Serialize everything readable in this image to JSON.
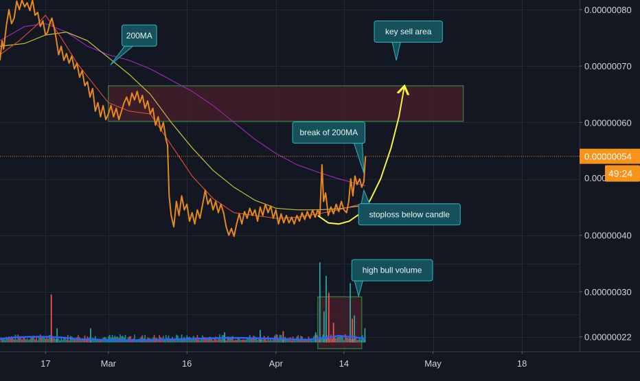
{
  "chart_data": {
    "type": "line",
    "price_axis": {
      "ticks": [
        {
          "label": "0.00000080",
          "value": 8e-07
        },
        {
          "label": "0.00000070",
          "value": 7e-07
        },
        {
          "label": "0.00000060",
          "value": 6e-07
        },
        {
          "label": "0.00000040",
          "value": 4e-07
        },
        {
          "label": "0.00000030",
          "value": 3e-07
        },
        {
          "label": "0.00000022",
          "value": 2.2e-07
        }
      ],
      "partial_tick_label": "0.000",
      "range": [
        1.94e-07,
        8.17e-07
      ]
    },
    "time_axis": {
      "ticks": [
        {
          "label": "17",
          "day": 0
        },
        {
          "label": "Mar",
          "day": 12
        },
        {
          "label": "16",
          "day": 27
        },
        {
          "label": "Apr",
          "day": 44
        },
        {
          "label": "14",
          "day": 57
        },
        {
          "label": "May",
          "day": 74
        },
        {
          "label": "18",
          "day": 91
        }
      ],
      "range_days": [
        -8.7,
        102
      ]
    },
    "current_price": {
      "value": 5.4e-07,
      "label": "0.00000054",
      "countdown": "49:24",
      "color": "#f7931a"
    },
    "price_series": {
      "color": "#e8891c",
      "points": [
        [
          -8.7,
          7.1e-07
        ],
        [
          -8.3,
          7.45e-07
        ],
        [
          -8.0,
          7.3e-07
        ],
        [
          -7.5,
          7.7e-07
        ],
        [
          -7.0,
          8e-07
        ],
        [
          -6.5,
          7.75e-07
        ],
        [
          -6.0,
          7.85e-07
        ],
        [
          -5.5,
          8.15e-07
        ],
        [
          -5.0,
          8e-07
        ],
        [
          -4.5,
          8.17e-07
        ],
        [
          -4.0,
          8.05e-07
        ],
        [
          -3.5,
          8.12e-07
        ],
        [
          -3.0,
          7.98e-07
        ],
        [
          -2.5,
          8.17e-07
        ],
        [
          -2.0,
          7.9e-07
        ],
        [
          -1.5,
          7.95e-07
        ],
        [
          -1.0,
          7.7e-07
        ],
        [
          -0.5,
          7.8e-07
        ],
        [
          0.0,
          7.55e-07
        ],
        [
          0.4,
          7.6e-07
        ],
        [
          0.8,
          7.75e-07
        ],
        [
          1.2,
          7.85e-07
        ],
        [
          1.6,
          7.7e-07
        ],
        [
          2.0,
          7.5e-07
        ],
        [
          2.5,
          7.2e-07
        ],
        [
          3.0,
          7.35e-07
        ],
        [
          3.5,
          7.1e-07
        ],
        [
          4.0,
          7.22e-07
        ],
        [
          4.5,
          7.05e-07
        ],
        [
          5.0,
          7.18e-07
        ],
        [
          5.5,
          6.95e-07
        ],
        [
          6.0,
          7.05e-07
        ],
        [
          6.5,
          6.8e-07
        ],
        [
          7.0,
          6.92e-07
        ],
        [
          7.5,
          6.65e-07
        ],
        [
          8.0,
          6.72e-07
        ],
        [
          8.5,
          6.45e-07
        ],
        [
          9.0,
          6.6e-07
        ],
        [
          9.5,
          6.2e-07
        ],
        [
          10.0,
          6.35e-07
        ],
        [
          10.5,
          6.1e-07
        ],
        [
          11.0,
          6.3e-07
        ],
        [
          11.5,
          6.05e-07
        ],
        [
          12.0,
          6.15e-07
        ],
        [
          12.5,
          6.3e-07
        ],
        [
          13.0,
          6.1e-07
        ],
        [
          13.5,
          6.25e-07
        ],
        [
          14.0,
          6.05e-07
        ],
        [
          14.5,
          6.2e-07
        ],
        [
          15.0,
          6.35e-07
        ],
        [
          15.5,
          6.45e-07
        ],
        [
          16.0,
          6.3e-07
        ],
        [
          16.5,
          6.52e-07
        ],
        [
          17.0,
          6.4e-07
        ],
        [
          17.5,
          6.55e-07
        ],
        [
          18.0,
          6.35e-07
        ],
        [
          18.5,
          6.48e-07
        ],
        [
          19.0,
          6.25e-07
        ],
        [
          19.5,
          6.38e-07
        ],
        [
          20.0,
          6.15e-07
        ],
        [
          20.5,
          6.25e-07
        ],
        [
          21.0,
          5.95e-07
        ],
        [
          21.5,
          6.1e-07
        ],
        [
          22.0,
          5.85e-07
        ],
        [
          22.5,
          6e-07
        ],
        [
          23.0,
          5.7e-07
        ],
        [
          23.3,
          5.6e-07
        ],
        [
          23.6,
          4.7e-07
        ],
        [
          24.0,
          4.35e-07
        ],
        [
          24.5,
          4.15e-07
        ],
        [
          25.0,
          4.6e-07
        ],
        [
          25.5,
          4.35e-07
        ],
        [
          26.0,
          4.7e-07
        ],
        [
          26.5,
          4.45e-07
        ],
        [
          27.0,
          4.55e-07
        ],
        [
          27.5,
          4.25e-07
        ],
        [
          28.0,
          4.4e-07
        ],
        [
          28.5,
          4.2e-07
        ],
        [
          29.0,
          4.45e-07
        ],
        [
          29.5,
          4.3e-07
        ],
        [
          30.0,
          4.55e-07
        ],
        [
          30.5,
          4.8e-07
        ],
        [
          31.0,
          4.55e-07
        ],
        [
          31.5,
          4.65e-07
        ],
        [
          32.0,
          4.45e-07
        ],
        [
          32.5,
          4.6e-07
        ],
        [
          33.0,
          4.4e-07
        ],
        [
          33.5,
          4.55e-07
        ],
        [
          34.0,
          4.4e-07
        ],
        [
          34.5,
          4.15e-07
        ],
        [
          35.0,
          4e-07
        ],
        [
          35.5,
          4.12e-07
        ],
        [
          36.0,
          3.98e-07
        ],
        [
          36.5,
          4.2e-07
        ],
        [
          37.0,
          4.38e-07
        ],
        [
          37.5,
          4.2e-07
        ],
        [
          38.0,
          4.42e-07
        ],
        [
          38.5,
          4.3e-07
        ],
        [
          39.0,
          4.48e-07
        ],
        [
          39.5,
          4.35e-07
        ],
        [
          40.0,
          4.45e-07
        ],
        [
          40.5,
          4.25e-07
        ],
        [
          41.0,
          4.5e-07
        ],
        [
          41.5,
          4.35e-07
        ],
        [
          42.0,
          4.55e-07
        ],
        [
          42.5,
          4.4e-07
        ],
        [
          43.0,
          4.52e-07
        ],
        [
          43.5,
          4.3e-07
        ],
        [
          44.0,
          4.45e-07
        ],
        [
          44.5,
          4.2e-07
        ],
        [
          45.0,
          4.38e-07
        ],
        [
          45.5,
          4.22e-07
        ],
        [
          46.0,
          4.35e-07
        ],
        [
          46.5,
          4.22e-07
        ],
        [
          47.0,
          4.32e-07
        ],
        [
          47.5,
          4.2e-07
        ],
        [
          48.0,
          4.35e-07
        ],
        [
          48.5,
          4.25e-07
        ],
        [
          49.0,
          4.4e-07
        ],
        [
          49.5,
          4.28e-07
        ],
        [
          50.0,
          4.42e-07
        ],
        [
          50.5,
          4.3e-07
        ],
        [
          51.0,
          4.45e-07
        ],
        [
          51.5,
          4.32e-07
        ],
        [
          52.0,
          4.45e-07
        ],
        [
          52.4,
          4.35e-07
        ],
        [
          52.8,
          5.25e-07
        ],
        [
          53.1,
          4.6e-07
        ],
        [
          53.5,
          4.75e-07
        ],
        [
          54.0,
          4.35e-07
        ],
        [
          54.5,
          4.5e-07
        ],
        [
          55.0,
          4.38e-07
        ],
        [
          55.5,
          4.55e-07
        ],
        [
          56.0,
          4.42e-07
        ],
        [
          56.5,
          4.6e-07
        ],
        [
          57.0,
          4.45e-07
        ],
        [
          57.5,
          4.4e-07
        ],
        [
          57.9,
          4.6e-07
        ],
        [
          58.3,
          5e-07
        ],
        [
          58.7,
          4.7e-07
        ],
        [
          59.1,
          5.05e-07
        ],
        [
          59.5,
          4.9e-07
        ],
        [
          60.0,
          5e-07
        ],
        [
          60.4,
          4.85e-07
        ],
        [
          60.8,
          4.95e-07
        ],
        [
          61.1,
          5.4e-07
        ]
      ]
    },
    "ma_200": {
      "color": "#9c27b0",
      "points": [
        [
          -8.7,
          7.45e-07
        ],
        [
          -4,
          7.7e-07
        ],
        [
          0,
          7.75e-07
        ],
        [
          4,
          7.6e-07
        ],
        [
          8,
          7.35e-07
        ],
        [
          12,
          7.2e-07
        ],
        [
          16,
          7.1e-07
        ],
        [
          20,
          6.95e-07
        ],
        [
          24,
          6.75e-07
        ],
        [
          28,
          6.55e-07
        ],
        [
          32,
          6.3e-07
        ],
        [
          36,
          6e-07
        ],
        [
          40,
          5.7e-07
        ],
        [
          44,
          5.45e-07
        ],
        [
          48,
          5.25e-07
        ],
        [
          52,
          5.12e-07
        ],
        [
          56,
          5e-07
        ],
        [
          60,
          4.9e-07
        ],
        [
          61.1,
          4.88e-07
        ]
      ]
    },
    "ma_yellow": {
      "color": "#c6c13a",
      "points": [
        [
          -8.7,
          7.35e-07
        ],
        [
          -4,
          7.4e-07
        ],
        [
          0,
          7.55e-07
        ],
        [
          4,
          7.6e-07
        ],
        [
          8,
          7.45e-07
        ],
        [
          12,
          7.15e-07
        ],
        [
          16,
          6.85e-07
        ],
        [
          20,
          6.5e-07
        ],
        [
          24,
          6e-07
        ],
        [
          28,
          5.55e-07
        ],
        [
          32,
          5.15e-07
        ],
        [
          36,
          4.85e-07
        ],
        [
          40,
          4.62e-07
        ],
        [
          44,
          4.48e-07
        ],
        [
          48,
          4.45e-07
        ],
        [
          52,
          4.45e-07
        ],
        [
          56,
          4.47e-07
        ],
        [
          60,
          4.52e-07
        ],
        [
          61.1,
          4.55e-07
        ]
      ]
    },
    "ma_red": {
      "color": "#e74c3c",
      "points": [
        [
          -8.7,
          7.2e-07
        ],
        [
          -5,
          7.45e-07
        ],
        [
          -2,
          7.7e-07
        ],
        [
          0,
          7.9e-07
        ],
        [
          3,
          7.5e-07
        ],
        [
          6,
          7.05e-07
        ],
        [
          9,
          6.7e-07
        ],
        [
          12,
          6.35e-07
        ],
        [
          16,
          6.2e-07
        ],
        [
          20,
          6.15e-07
        ],
        [
          24,
          5.6e-07
        ],
        [
          28,
          5.05e-07
        ],
        [
          32,
          4.65e-07
        ],
        [
          36,
          4.4e-07
        ],
        [
          40,
          4.35e-07
        ],
        [
          44,
          4.3e-07
        ],
        [
          48,
          4.32e-07
        ],
        [
          52,
          4.38e-07
        ],
        [
          56,
          4.45e-07
        ],
        [
          60,
          4.55e-07
        ],
        [
          61.1,
          4.58e-07
        ]
      ]
    },
    "zones": [
      {
        "name": "key-sell-zone",
        "x0": 12.0,
        "x1": 79.8,
        "y0": 6.02e-07,
        "y1": 6.65e-07,
        "fill": "#4a1f2c",
        "stroke": "#2ea043"
      },
      {
        "name": "volume-highlight-zone",
        "x0": 52.0,
        "x1": 60.4,
        "y0": 1.99e-07,
        "y1": 2.91e-07,
        "fill": "#4a1f2c",
        "stroke": "#2ea043"
      }
    ],
    "projection_curve": {
      "color": "#f5f542",
      "points": [
        [
          52,
          4.35e-07
        ],
        [
          54,
          4.22e-07
        ],
        [
          56,
          4.2e-07
        ],
        [
          58,
          4.25e-07
        ],
        [
          60,
          4.38e-07
        ],
        [
          62,
          4.62e-07
        ],
        [
          64,
          5e-07
        ],
        [
          66,
          5.55e-07
        ],
        [
          67.5,
          6.1e-07
        ],
        [
          68.5,
          6.62e-07
        ]
      ]
    },
    "callouts": [
      {
        "text": "200MA",
        "box_day": 17.9,
        "box_price": 7.54e-07,
        "tip_day": 12.4,
        "tip_price": 7.02e-07
      },
      {
        "text": "key sell area",
        "box_day": 69.3,
        "box_price": 7.61e-07,
        "tip_day": 67.0,
        "tip_price": 7.1e-07
      },
      {
        "text": "break of 200MA",
        "box_day": 54.1,
        "box_price": 5.82e-07,
        "tip_day": 60.8,
        "tip_price": 5.1e-07
      },
      {
        "text": "stoploss below candle",
        "box_day": 69.5,
        "box_price": 4.37e-07,
        "tip_day": 60.8,
        "tip_price": 4.8e-07
      },
      {
        "text": "high bull volume",
        "box_day": 66.2,
        "box_price": 3.38e-07,
        "tip_day": 59.8,
        "tip_price": 2.92e-07
      }
    ],
    "volume": {
      "baseline_price": 2.1e-07,
      "bar_colors": {
        "up": "#26a69a",
        "down": "#ef5350"
      },
      "avg_color": "#2962ff",
      "spikes": [
        {
          "day": 1.1,
          "top": 2.95e-07,
          "dir": "down"
        },
        {
          "day": 2.2,
          "top": 2.35e-07,
          "dir": "up"
        },
        {
          "day": 8.6,
          "top": 2.35e-07,
          "dir": "up"
        },
        {
          "day": 34.2,
          "top": 2.28e-07,
          "dir": "up"
        },
        {
          "day": 41.0,
          "top": 2.32e-07,
          "dir": "up"
        },
        {
          "day": 45.4,
          "top": 2.3e-07,
          "dir": "down"
        },
        {
          "day": 51.6,
          "top": 2.28e-07,
          "dir": "up"
        },
        {
          "day": 52.4,
          "top": 3.52e-07,
          "dir": "up"
        },
        {
          "day": 53.2,
          "top": 2.65e-07,
          "dir": "up"
        },
        {
          "day": 53.6,
          "top": 3.28e-07,
          "dir": "up"
        },
        {
          "day": 54.1,
          "top": 2.98e-07,
          "dir": "down"
        },
        {
          "day": 55.0,
          "top": 2.45e-07,
          "dir": "down"
        },
        {
          "day": 58.2,
          "top": 3.15e-07,
          "dir": "up"
        },
        {
          "day": 58.6,
          "top": 2.52e-07,
          "dir": "down"
        },
        {
          "day": 59.0,
          "top": 2.58e-07,
          "dir": "up"
        },
        {
          "day": 61.0,
          "top": 2.35e-07,
          "dir": "up"
        }
      ],
      "avg_points": [
        [
          -8.7,
          2.16e-07
        ],
        [
          -6,
          2.19e-07
        ],
        [
          -3,
          2.2e-07
        ],
        [
          0,
          2.2e-07
        ],
        [
          3,
          2.19e-07
        ],
        [
          6,
          2.16e-07
        ],
        [
          10,
          2.15e-07
        ],
        [
          14,
          2.14e-07
        ],
        [
          18,
          2.14e-07
        ],
        [
          22,
          2.15e-07
        ],
        [
          26,
          2.16e-07
        ],
        [
          30,
          2.17e-07
        ],
        [
          34,
          2.18e-07
        ],
        [
          38,
          2.18e-07
        ],
        [
          42,
          2.17e-07
        ],
        [
          46,
          2.16e-07
        ],
        [
          50,
          2.15e-07
        ],
        [
          52,
          2.17e-07
        ],
        [
          54,
          2.19e-07
        ],
        [
          56,
          2.22e-07
        ],
        [
          58,
          2.2e-07
        ],
        [
          60,
          2.18e-07
        ],
        [
          61.1,
          2.17e-07
        ]
      ]
    }
  }
}
